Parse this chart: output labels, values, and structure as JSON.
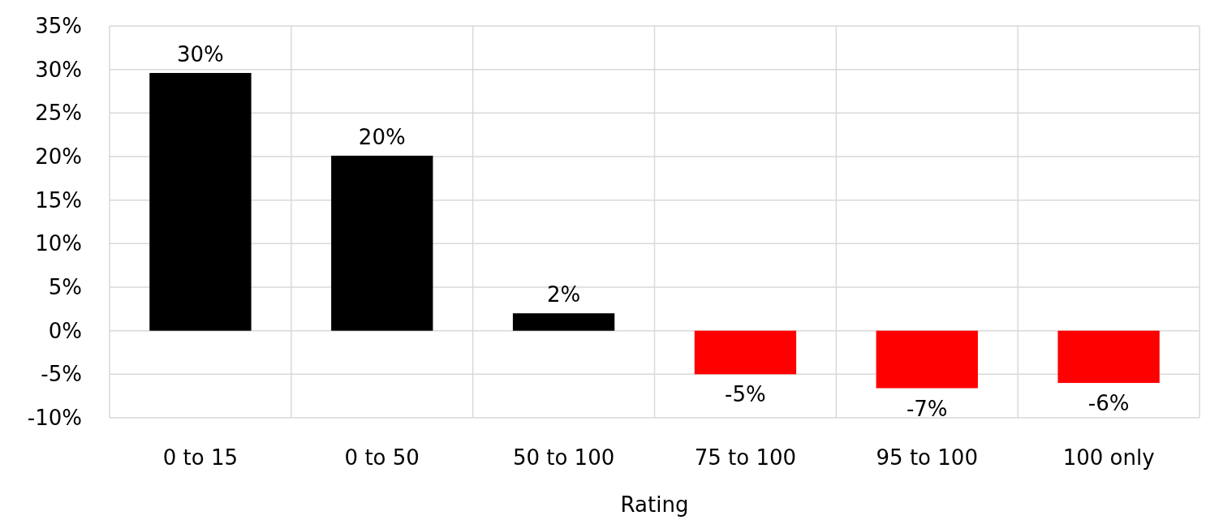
{
  "chart_data": {
    "type": "bar",
    "xlabel": "Rating",
    "categories": [
      "0 to 15",
      "0 to 50",
      "50 to 100",
      "75 to 100",
      "95 to 100",
      "100 only"
    ],
    "values": [
      29.6,
      20.1,
      2.0,
      -5.0,
      -6.6,
      -6.0
    ],
    "colors": [
      "#000000",
      "#000000",
      "#000000",
      "#ff0000",
      "#ff0000",
      "#ff0000"
    ],
    "value_labels": [
      "30%",
      "20%",
      "2%",
      "-5%",
      "-7%",
      "-6%"
    ],
    "ylim": [
      -10,
      35
    ],
    "yticks": [
      {
        "value": -10,
        "label": "-10%"
      },
      {
        "value": -5,
        "label": "-5%"
      },
      {
        "value": 0,
        "label": "0%"
      },
      {
        "value": 5,
        "label": "5%"
      },
      {
        "value": 10,
        "label": "10%"
      },
      {
        "value": 15,
        "label": "15%"
      },
      {
        "value": 20,
        "label": "20%"
      },
      {
        "value": 25,
        "label": "25%"
      },
      {
        "value": 30,
        "label": "30%"
      },
      {
        "value": 35,
        "label": "35%"
      }
    ],
    "grid": true
  }
}
